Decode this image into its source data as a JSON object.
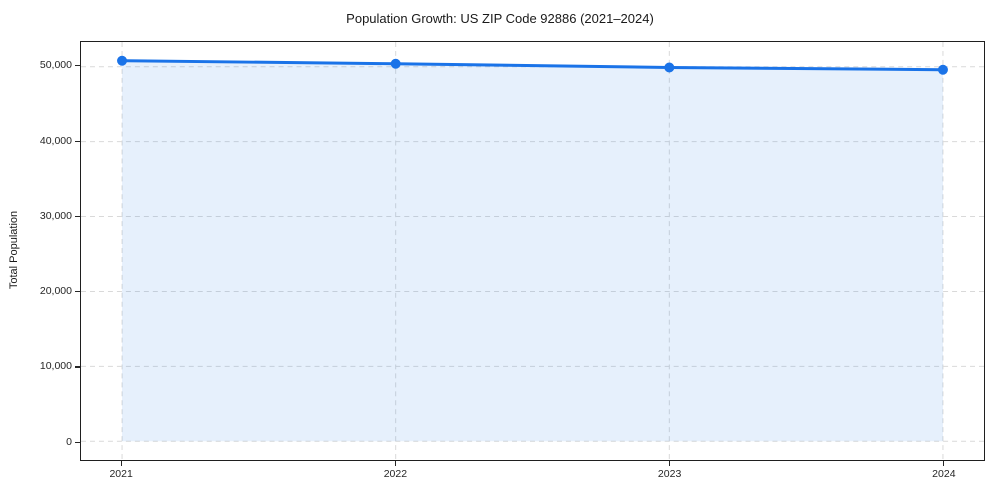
{
  "figure": {
    "background_color": "#ffffff",
    "title": "Population Growth: US ZIP Code 92886 (2021–2024)"
  },
  "chart_data": {
    "type": "line",
    "title": "Population Growth: US ZIP Code 92886 (2021–2024)",
    "xlabel": "",
    "ylabel": "Total Population",
    "x": [
      2021,
      2022,
      2023,
      2024
    ],
    "xtick_labels": [
      "2021",
      "2022",
      "2023",
      "2024"
    ],
    "series": [
      {
        "name": "Total Population",
        "values": [
          50800,
          50400,
          49900,
          49600
        ]
      }
    ],
    "yticks": [
      0,
      10000,
      20000,
      30000,
      40000,
      50000
    ],
    "ytick_labels": [
      "0",
      "10,000",
      "20,000",
      "30,000",
      "40,000",
      "50,000"
    ],
    "xlim": [
      2020.85,
      2024.15
    ],
    "ylim": [
      -2500,
      53300
    ],
    "grid": true,
    "grid_line_style": "dashed",
    "grid_color": "#d9d9d9",
    "legend_position": "none",
    "line_color": "#1a73e8",
    "marker": "circle",
    "marker_color": "#1a73e8",
    "area_fill": true,
    "area_fill_color": "#1a73e8",
    "area_fill_opacity": 0.11,
    "baseline_value": 0
  }
}
